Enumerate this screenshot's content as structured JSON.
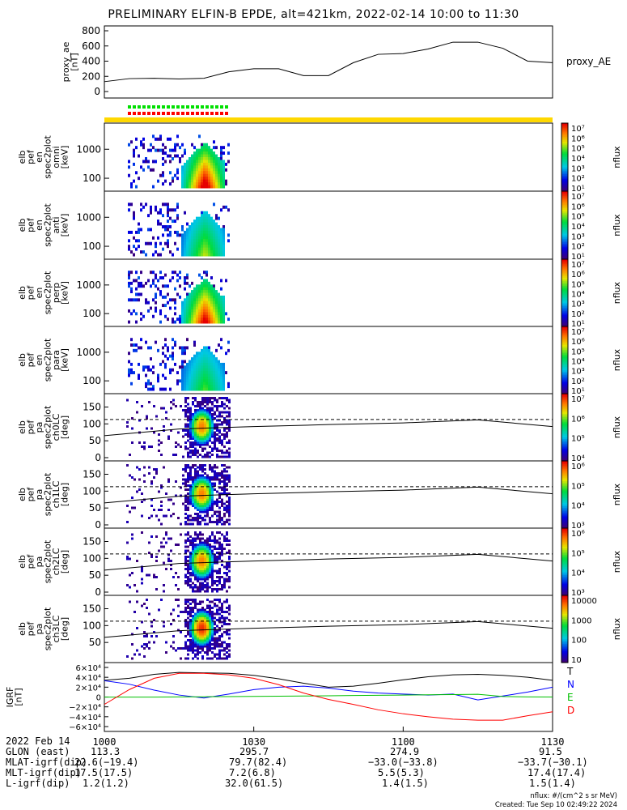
{
  "title": "PRELIMINARY ELFIN-B EPDE, alt=421km, 2022-02-14 10:00 to 11:30",
  "colors": {
    "axis": "#000000",
    "trackbar": "#ffd800",
    "qual_green": "#00e000",
    "qual_red": "#ff0000",
    "igrf_T": "#000000",
    "igrf_N": "#0000ff",
    "igrf_E": "#00c000",
    "igrf_D": "#ff0000"
  },
  "panels": [
    {
      "id": "proxy_ae",
      "ylabel": [
        "proxy_ae",
        "[nT]"
      ],
      "ticks": [
        "800",
        "600",
        "400",
        "200",
        "0"
      ],
      "right_label": "proxy_AE"
    },
    {
      "id": "en_omni",
      "ylabel": [
        "elb",
        "pef",
        "en",
        "spec2plot",
        "omni",
        "[keV]"
      ],
      "ticks": [
        "1000",
        "100"
      ],
      "cbar_ticks": [
        "10⁷",
        "10⁶",
        "10⁵",
        "10⁴",
        "10³",
        "10²",
        "10¹"
      ],
      "cbar_label": "nflux"
    },
    {
      "id": "en_anti",
      "ylabel": [
        "elb",
        "pef",
        "en",
        "spec2plot",
        "anti",
        "[keV]"
      ],
      "ticks": [
        "1000",
        "100"
      ],
      "cbar_ticks": [
        "10⁷",
        "10⁶",
        "10⁵",
        "10⁴",
        "10³",
        "10²",
        "10¹"
      ],
      "cbar_label": "nflux"
    },
    {
      "id": "en_perp",
      "ylabel": [
        "elb",
        "pef",
        "en",
        "spec2plot",
        "perp",
        "[keV]"
      ],
      "ticks": [
        "1000",
        "100"
      ],
      "cbar_ticks": [
        "10⁷",
        "10⁶",
        "10⁵",
        "10⁴",
        "10³",
        "10²",
        "10¹"
      ],
      "cbar_label": "nflux"
    },
    {
      "id": "en_para",
      "ylabel": [
        "elb",
        "pef",
        "en",
        "spec2plot",
        "para",
        "[keV]"
      ],
      "ticks": [
        "1000",
        "100"
      ],
      "cbar_ticks": [
        "10⁷",
        "10⁶",
        "10⁵",
        "10⁴",
        "10³",
        "10²",
        "10¹"
      ],
      "cbar_label": "nflux"
    },
    {
      "id": "pa_ch0",
      "ylabel": [
        "elb",
        "pef",
        "pa",
        "spec2plot",
        "ch0LC",
        "[deg]"
      ],
      "ticks": [
        "150",
        "100",
        "50",
        "0"
      ],
      "cbar_ticks": [
        "10⁷",
        "10⁶",
        "10⁵",
        "10⁴"
      ],
      "cbar_label": "nflux"
    },
    {
      "id": "pa_ch1",
      "ylabel": [
        "elb",
        "pef",
        "pa",
        "spec2plot",
        "ch1LC",
        "[deg]"
      ],
      "ticks": [
        "150",
        "100",
        "50",
        "0"
      ],
      "cbar_ticks": [
        "10⁶",
        "10⁵",
        "10⁴",
        "10³"
      ],
      "cbar_label": "nflux"
    },
    {
      "id": "pa_ch2",
      "ylabel": [
        "elb",
        "pef",
        "pa",
        "spec2plot",
        "ch2LC",
        "[deg]"
      ],
      "ticks": [
        "150",
        "100",
        "50",
        "0"
      ],
      "cbar_ticks": [
        "10⁶",
        "10⁵",
        "10⁴",
        "10³"
      ],
      "cbar_label": "nflux"
    },
    {
      "id": "pa_ch3",
      "ylabel": [
        "elb",
        "pef",
        "pa",
        "spec2plot",
        "ch3LC",
        "[deg]"
      ],
      "ticks": [
        "150",
        "100",
        "50"
      ],
      "cbar_ticks": [
        "10000",
        "1000",
        "100",
        "10"
      ],
      "cbar_label": "nflux"
    },
    {
      "id": "igrf",
      "ylabel": [
        "IGRF",
        "[nT]"
      ],
      "ticks": [
        "6×10⁴",
        "4×10⁴",
        "2×10⁴",
        "0",
        "−2×10⁴",
        "−4×10⁴",
        "−6×10⁴"
      ],
      "legend": [
        "T",
        "N",
        "E",
        "D"
      ]
    }
  ],
  "xticks": [
    "1000",
    "1030",
    "1100",
    "1130"
  ],
  "footer": {
    "rows": [
      [
        "2022 Feb 14",
        "",
        "",
        "",
        ""
      ],
      [
        "GLON (east)",
        "113.3",
        "295.7",
        "274.9",
        "91.5"
      ],
      [
        "MLAT-igrf(dip)",
        "22.6(−19.4)",
        "79.7(82.4)",
        "−33.0(−33.8)",
        "−33.7(−30.1)"
      ],
      [
        "MLT-igrf(dip)",
        "17.5(17.5)",
        "7.2(6.8)",
        "5.5(5.3)",
        "17.4(17.4)"
      ],
      [
        "L-igrf(dip)",
        "1.2(1.2)",
        "32.0(61.5)",
        "1.4(1.5)",
        "1.5(1.4)"
      ]
    ],
    "units": "nflux: #/(cm^2 s sr MeV)",
    "created": "Created: Tue Sep 10 02:49:22 2024"
  },
  "chart_data": [
    {
      "type": "line",
      "title": "",
      "xlabel": "",
      "ylabel": "proxy_ae [nT]",
      "x": [
        "10:00",
        "10:05",
        "10:10",
        "10:15",
        "10:20",
        "10:25",
        "10:30",
        "10:35",
        "10:40",
        "10:45",
        "10:50",
        "10:55",
        "11:00",
        "11:05",
        "11:10",
        "11:15",
        "11:20",
        "11:25",
        "11:30"
      ],
      "series": [
        {
          "name": "proxy_AE",
          "values": [
            130,
            170,
            175,
            165,
            175,
            260,
            300,
            300,
            210,
            210,
            380,
            490,
            500,
            560,
            650,
            650,
            570,
            400,
            380
          ]
        }
      ],
      "ylim": [
        0,
        800
      ]
    },
    {
      "type": "heatmap",
      "title": "",
      "xlabel": "",
      "ylabel": "[keV]",
      "panels": [
        "omni",
        "anti",
        "perp",
        "para"
      ],
      "ylim": [
        60,
        7000
      ],
      "active_window": [
        "10:03",
        "10:12"
      ],
      "peak": "10:07",
      "colorbar": "nflux",
      "colorbar_range": [
        "10¹",
        "10⁷"
      ]
    },
    {
      "type": "heatmap",
      "title": "",
      "xlabel": "",
      "ylabel": "[deg]",
      "panels": [
        "ch0LC",
        "ch1LC",
        "ch2LC",
        "ch3LC"
      ],
      "ylim": [
        0,
        180
      ],
      "active_window": [
        "10:03",
        "10:12"
      ],
      "peak": "10:07",
      "peak_pitch_angle": 90,
      "colorbar": "nflux",
      "dashed_level": 113,
      "solid_curve": {
        "x": [
          "10:00",
          "10:15",
          "10:30",
          "10:45",
          "11:00",
          "11:15",
          "11:30"
        ],
        "values": [
          65,
          85,
          92,
          98,
          103,
          112,
          92
        ]
      }
    },
    {
      "type": "line",
      "title": "",
      "xlabel": "",
      "ylabel": "IGRF [nT]",
      "x": [
        "10:00",
        "10:05",
        "10:10",
        "10:15",
        "10:20",
        "10:25",
        "10:30",
        "10:35",
        "10:40",
        "10:45",
        "10:50",
        "10:55",
        "11:00",
        "11:05",
        "11:10",
        "11:15",
        "11:20",
        "11:25",
        "11:30"
      ],
      "series": [
        {
          "name": "T",
          "values": [
            34000,
            38000,
            46000,
            50000,
            49000,
            48000,
            44000,
            37000,
            28000,
            20000,
            22000,
            28000,
            35000,
            41000,
            45000,
            46000,
            44000,
            40000,
            34000
          ]
        },
        {
          "name": "N",
          "values": [
            33000,
            26000,
            14000,
            4000,
            -2000,
            6000,
            15000,
            20000,
            22000,
            18000,
            12000,
            8000,
            6000,
            4000,
            6000,
            -6000,
            2000,
            10000,
            20000
          ]
        },
        {
          "name": "E",
          "values": [
            -300,
            -300,
            -200,
            200,
            500,
            900,
            1200,
            1600,
            2000,
            2500,
            3000,
            3500,
            4000,
            4500,
            5000,
            5500,
            1000,
            200,
            0
          ]
        },
        {
          "name": "D",
          "values": [
            -15000,
            15000,
            38000,
            48000,
            48000,
            45000,
            38000,
            25000,
            8000,
            -5000,
            -15000,
            -26000,
            -34000,
            -40000,
            -45000,
            -47000,
            -47000,
            -38000,
            -30000
          ]
        }
      ],
      "ylim": [
        -60000,
        60000
      ]
    }
  ]
}
